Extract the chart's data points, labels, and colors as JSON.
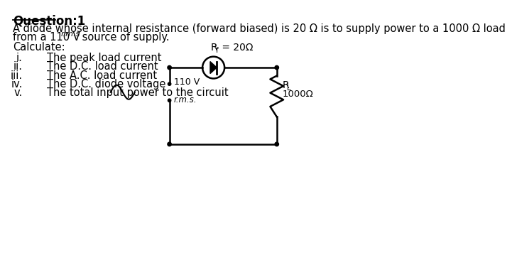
{
  "title": "Question:1",
  "para1": "A diode whose internal resistance (forward biased) is 20 Ω is to supply power to a 1000 Ω load",
  "para2_pre": "from a 110 V",
  "para2_sub": "r.m.s",
  "para2_end": " source of supply.",
  "para3": "Calculate:",
  "items": [
    [
      "i.",
      "The peak load current"
    ],
    [
      "ii.",
      "The D.C. load current"
    ],
    [
      "iii.",
      "The A.C. load current"
    ],
    [
      "iv.",
      "The D.C. diode voltage"
    ],
    [
      "v.",
      "The total input power to the circuit"
    ]
  ],
  "circuit_label_Rf": "R",
  "circuit_label_Rf_sub": "f",
  "circuit_label_Rf_end": " = 20Ω",
  "circuit_label_V": "110 V",
  "circuit_label_rms": "r.m.s.",
  "circuit_label_RL": "R",
  "circuit_label_RL_sub": "L",
  "circuit_label_RL2": "1000Ω",
  "bg_color": "#ffffff",
  "text_color": "#000000"
}
